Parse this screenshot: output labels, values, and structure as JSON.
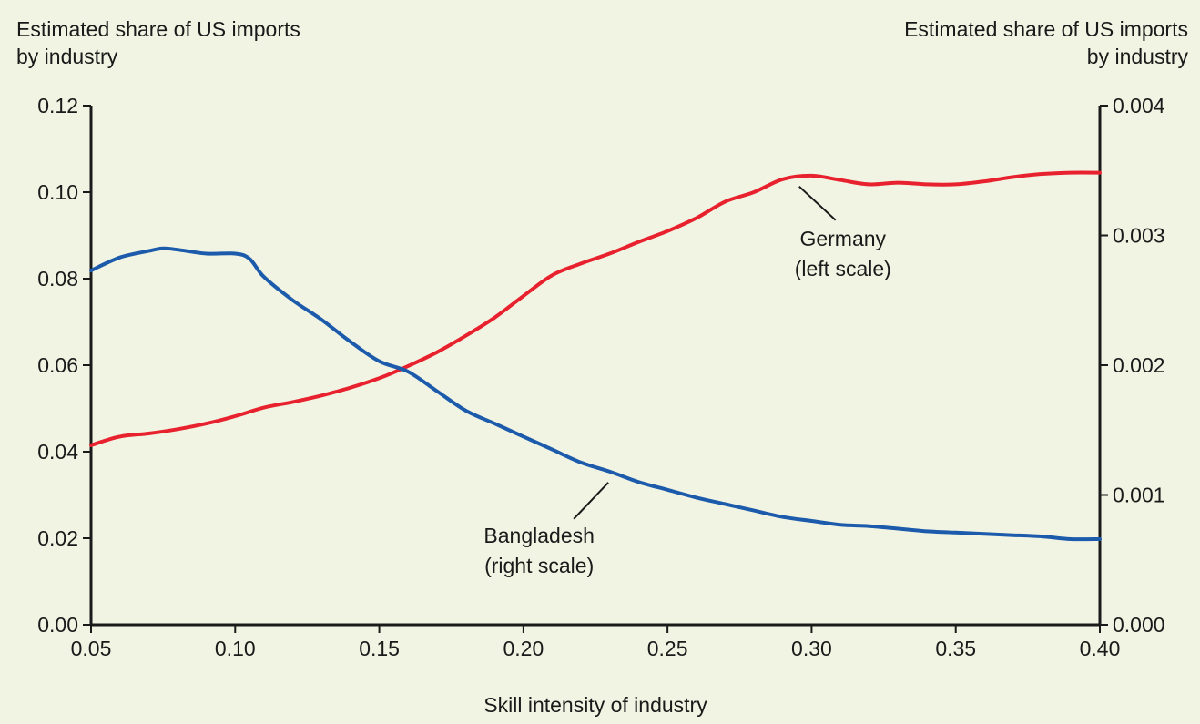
{
  "chart_data": {
    "type": "line",
    "xlabel": "Skill intensity of industry",
    "ylabel_left": [
      "Estimated share of US imports",
      "by industry"
    ],
    "ylabel_right": [
      "Estimated share of US imports",
      "by industry"
    ],
    "xlim": [
      0.05,
      0.4
    ],
    "ylim_left": [
      0.0,
      0.12
    ],
    "ylim_right": [
      0.0,
      0.004
    ],
    "x_ticks": [
      0.05,
      0.1,
      0.15,
      0.2,
      0.25,
      0.3,
      0.35,
      0.4
    ],
    "x_tick_labels": [
      "0.05",
      "0.10",
      "0.15",
      "0.20",
      "0.25",
      "0.30",
      "0.35",
      "0.40"
    ],
    "y_ticks_left": [
      0.0,
      0.02,
      0.04,
      0.06,
      0.08,
      0.1,
      0.12
    ],
    "y_tick_labels_left": [
      "0.00",
      "0.02",
      "0.04",
      "0.06",
      "0.08",
      "0.10",
      "0.12"
    ],
    "y_ticks_right": [
      0.0,
      0.001,
      0.002,
      0.003,
      0.004
    ],
    "y_tick_labels_right": [
      "0.000",
      "0.001",
      "0.002",
      "0.003",
      "0.004"
    ],
    "grid": false,
    "series": [
      {
        "axis": "left",
        "color": "#e8212e",
        "x": [
          0.05,
          0.06,
          0.07,
          0.08,
          0.09,
          0.1,
          0.11,
          0.12,
          0.13,
          0.14,
          0.15,
          0.16,
          0.17,
          0.18,
          0.19,
          0.2,
          0.21,
          0.22,
          0.23,
          0.24,
          0.25,
          0.26,
          0.27,
          0.28,
          0.29,
          0.3,
          0.31,
          0.32,
          0.33,
          0.34,
          0.35,
          0.36,
          0.37,
          0.38,
          0.39,
          0.4
        ],
        "y": [
          0.0415,
          0.0435,
          0.0442,
          0.0452,
          0.0465,
          0.0482,
          0.0502,
          0.0515,
          0.053,
          0.0548,
          0.057,
          0.0598,
          0.063,
          0.0668,
          0.071,
          0.076,
          0.0808,
          0.0835,
          0.0858,
          0.0885,
          0.091,
          0.094,
          0.0978,
          0.1,
          0.103,
          0.1038,
          0.1028,
          0.1018,
          0.1022,
          0.1018,
          0.1018,
          0.1025,
          0.1035,
          0.1042,
          0.1045,
          0.1045
        ],
        "label": [
          "Germany",
          "(left scale)"
        ],
        "label_anchor": [
          0.29,
          0.103
        ]
      },
      {
        "axis": "right",
        "color": "#1c5bab",
        "x": [
          0.05,
          0.06,
          0.07,
          0.075,
          0.08,
          0.09,
          0.1,
          0.105,
          0.11,
          0.12,
          0.13,
          0.14,
          0.15,
          0.16,
          0.17,
          0.18,
          0.19,
          0.2,
          0.21,
          0.22,
          0.23,
          0.24,
          0.25,
          0.26,
          0.27,
          0.28,
          0.29,
          0.3,
          0.31,
          0.32,
          0.33,
          0.34,
          0.35,
          0.36,
          0.37,
          0.38,
          0.39,
          0.4
        ],
        "y": [
          0.00273,
          0.00283,
          0.00288,
          0.0029,
          0.00289,
          0.00286,
          0.00286,
          0.00282,
          0.00268,
          0.0025,
          0.00235,
          0.00218,
          0.00203,
          0.00195,
          0.0018,
          0.00165,
          0.00155,
          0.00145,
          0.00135,
          0.00125,
          0.00118,
          0.0011,
          0.00104,
          0.00098,
          0.00093,
          0.00088,
          0.00083,
          0.0008,
          0.00077,
          0.00076,
          0.00074,
          0.00072,
          0.00071,
          0.0007,
          0.00069,
          0.00068,
          0.00066,
          0.00066
        ],
        "label": [
          "Bangladesh",
          "(right scale)"
        ],
        "label_anchor": [
          0.232,
          0.00118
        ]
      }
    ]
  }
}
